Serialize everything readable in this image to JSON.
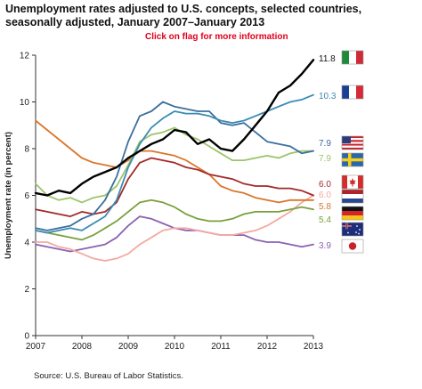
{
  "header": {
    "title_line1": "Unemployment rates adjusted to U.S. concepts, selected countries,",
    "title_line2": "seasonally adjusted, January 2007–January 2013",
    "click_note": "Click on flag for more information"
  },
  "source": "Source: U.S. Bureau of Labor Statistics.",
  "colors": {
    "italy": "#000000",
    "france": "#3a8bb3",
    "us": "#3b6f9c",
    "sweden": "#9cc46a",
    "canada": "#a32a2a",
    "netherlands": "#d9762b",
    "uk": "#7aa03c",
    "germany": "#f4a9a0",
    "australia": "#8a61b2",
    "japan": "#8a61b2"
  },
  "flags": [
    {
      "country": "Italy",
      "icon": "italy-flag-icon"
    },
    {
      "country": "France",
      "icon": "france-flag-icon"
    },
    {
      "country": "United States",
      "icon": "us-flag-icon"
    },
    {
      "country": "Sweden",
      "icon": "sweden-flag-icon"
    },
    {
      "country": "Canada",
      "icon": "canada-flag-icon"
    },
    {
      "country": "Netherlands",
      "icon": "netherlands-flag-icon"
    },
    {
      "country": "Germany",
      "icon": "germany-flag-icon"
    },
    {
      "country": "Australia",
      "icon": "australia-flag-icon"
    },
    {
      "country": "Japan",
      "icon": "japan-flag-icon"
    }
  ],
  "chart_data": {
    "type": "line",
    "title": "Unemployment rates adjusted to U.S. concepts, selected countries, seasonally adjusted, January 2007–January 2013",
    "xlabel": "",
    "ylabel": "Unemployment rate (in percent)",
    "xlim": [
      2007,
      2013
    ],
    "ylim": [
      0,
      12
    ],
    "xticks": [
      "2007",
      "2008",
      "2009",
      "2010",
      "2011",
      "2012",
      "2013"
    ],
    "yticks": [
      "0",
      "2",
      "4",
      "6",
      "8",
      "10",
      "12"
    ],
    "grid": false,
    "end_labels": [
      {
        "text": "11.8",
        "color": "#000000"
      },
      {
        "text": "10.3",
        "color": "#3a8bb3"
      },
      {
        "text": "7.9",
        "color": "#3b6f9c"
      },
      {
        "text": "7.9",
        "color": "#9cc46a"
      },
      {
        "text": "6.0",
        "color": "#a32a2a"
      },
      {
        "text": "6.0",
        "color": "#f4a9a0"
      },
      {
        "text": "5.8",
        "color": "#d9762b"
      },
      {
        "text": "5.4",
        "color": "#7aa03c"
      },
      {
        "text": "3.9",
        "color": "#8a61b2"
      }
    ],
    "series": [
      {
        "name": "Italy",
        "color": "#000000",
        "width": 2.4,
        "x": [
          2007,
          2007.25,
          2007.5,
          2007.75,
          2008,
          2008.25,
          2008.5,
          2008.75,
          2009,
          2009.25,
          2009.5,
          2009.75,
          2010,
          2010.25,
          2010.5,
          2010.75,
          2011,
          2011.25,
          2011.5,
          2011.75,
          2012,
          2012.25,
          2012.5,
          2012.75,
          2013
        ],
        "y": [
          6.1,
          6.0,
          6.2,
          6.1,
          6.5,
          6.8,
          7.0,
          7.2,
          7.6,
          7.9,
          8.2,
          8.4,
          8.8,
          8.7,
          8.2,
          8.4,
          8.0,
          7.9,
          8.4,
          9.0,
          9.6,
          10.4,
          10.7,
          11.2,
          11.8
        ]
      },
      {
        "name": "France",
        "color": "#3a8bb3",
        "width": 1.8,
        "x": [
          2007,
          2007.25,
          2007.5,
          2007.75,
          2008,
          2008.25,
          2008.5,
          2008.75,
          2009,
          2009.25,
          2009.5,
          2009.75,
          2010,
          2010.25,
          2010.5,
          2010.75,
          2011,
          2011.25,
          2011.5,
          2011.75,
          2012,
          2012.25,
          2012.5,
          2012.75,
          2013
        ],
        "y": [
          4.5,
          4.4,
          4.5,
          4.6,
          4.5,
          4.8,
          5.1,
          5.8,
          7.2,
          8.2,
          8.9,
          9.3,
          9.6,
          9.5,
          9.5,
          9.4,
          9.2,
          9.1,
          9.2,
          9.4,
          9.6,
          9.8,
          10.0,
          10.1,
          10.3
        ]
      },
      {
        "name": "United States",
        "color": "#3b6f9c",
        "width": 1.8,
        "x": [
          2007,
          2007.25,
          2007.5,
          2007.75,
          2008,
          2008.25,
          2008.5,
          2008.75,
          2009,
          2009.25,
          2009.5,
          2009.75,
          2010,
          2010.25,
          2010.5,
          2010.75,
          2011,
          2011.25,
          2011.5,
          2011.75,
          2012,
          2012.25,
          2012.5,
          2012.75,
          2013
        ],
        "y": [
          4.6,
          4.5,
          4.6,
          4.7,
          5.0,
          5.2,
          5.8,
          6.8,
          8.3,
          9.4,
          9.6,
          10.0,
          9.8,
          9.7,
          9.6,
          9.6,
          9.1,
          9.0,
          9.1,
          8.7,
          8.3,
          8.2,
          8.1,
          7.8,
          7.9
        ]
      },
      {
        "name": "Sweden",
        "color": "#9cc46a",
        "width": 1.8,
        "x": [
          2007,
          2007.25,
          2007.5,
          2007.75,
          2008,
          2008.25,
          2008.5,
          2008.75,
          2009,
          2009.25,
          2009.5,
          2009.75,
          2010,
          2010.25,
          2010.5,
          2010.75,
          2011,
          2011.25,
          2011.5,
          2011.75,
          2012,
          2012.25,
          2012.5,
          2012.75,
          2013
        ],
        "y": [
          6.5,
          6.0,
          5.8,
          5.9,
          5.7,
          5.9,
          6.0,
          6.4,
          7.3,
          8.3,
          8.6,
          8.7,
          8.9,
          8.6,
          8.4,
          8.1,
          7.8,
          7.5,
          7.5,
          7.6,
          7.7,
          7.6,
          7.8,
          7.9,
          7.9
        ]
      },
      {
        "name": "Canada",
        "color": "#a32a2a",
        "width": 1.8,
        "x": [
          2007,
          2007.25,
          2007.5,
          2007.75,
          2008,
          2008.25,
          2008.5,
          2008.75,
          2009,
          2009.25,
          2009.5,
          2009.75,
          2010,
          2010.25,
          2010.5,
          2010.75,
          2011,
          2011.25,
          2011.5,
          2011.75,
          2012,
          2012.25,
          2012.5,
          2012.75,
          2013
        ],
        "y": [
          5.4,
          5.3,
          5.2,
          5.1,
          5.3,
          5.2,
          5.3,
          5.7,
          6.7,
          7.4,
          7.6,
          7.5,
          7.4,
          7.2,
          7.1,
          6.9,
          6.8,
          6.7,
          6.5,
          6.4,
          6.4,
          6.3,
          6.3,
          6.2,
          6.0
        ]
      },
      {
        "name": "Netherlands",
        "color": "#d9762b",
        "width": 1.8,
        "x": [
          2007,
          2007.25,
          2007.5,
          2007.75,
          2008,
          2008.25,
          2008.5,
          2008.75,
          2009,
          2009.25,
          2009.5,
          2009.75,
          2010,
          2010.25,
          2010.5,
          2010.75,
          2011,
          2011.25,
          2011.5,
          2011.75,
          2012,
          2012.25,
          2012.5,
          2012.75,
          2013
        ],
        "y": [
          9.2,
          8.8,
          8.4,
          8.0,
          7.6,
          7.4,
          7.3,
          7.2,
          7.5,
          7.9,
          7.9,
          7.8,
          7.7,
          7.5,
          7.2,
          6.9,
          6.4,
          6.2,
          6.1,
          5.9,
          5.8,
          5.7,
          5.8,
          5.8,
          5.8
        ]
      },
      {
        "name": "United Kingdom",
        "color": "#7aa03c",
        "width": 1.8,
        "x": [
          2007,
          2007.25,
          2007.5,
          2007.75,
          2008,
          2008.25,
          2008.5,
          2008.75,
          2009,
          2009.25,
          2009.5,
          2009.75,
          2010,
          2010.25,
          2010.5,
          2010.75,
          2011,
          2011.25,
          2011.5,
          2011.75,
          2012,
          2012.25,
          2012.5,
          2012.75,
          2013
        ],
        "y": [
          4.5,
          4.4,
          4.3,
          4.2,
          4.1,
          4.3,
          4.6,
          4.9,
          5.3,
          5.7,
          5.8,
          5.7,
          5.5,
          5.2,
          5.0,
          4.9,
          4.9,
          5.0,
          5.2,
          5.3,
          5.3,
          5.3,
          5.4,
          5.5,
          5.4
        ]
      },
      {
        "name": "Germany",
        "color": "#f4a9a0",
        "width": 1.8,
        "x": [
          2007,
          2007.25,
          2007.5,
          2007.75,
          2008,
          2008.25,
          2008.5,
          2008.75,
          2009,
          2009.25,
          2009.5,
          2009.75,
          2010,
          2010.25,
          2010.5,
          2010.75,
          2011,
          2011.25,
          2011.5,
          2011.75,
          2012,
          2012.25,
          2012.5,
          2012.75,
          2013
        ],
        "y": [
          4.0,
          4.0,
          3.8,
          3.7,
          3.5,
          3.3,
          3.2,
          3.3,
          3.5,
          3.9,
          4.2,
          4.5,
          4.6,
          4.6,
          4.5,
          4.4,
          4.3,
          4.3,
          4.4,
          4.5,
          4.7,
          5.0,
          5.3,
          5.7,
          6.0
        ]
      },
      {
        "name": "Australia",
        "color": "#8a61b2",
        "width": 1.8,
        "x": [
          2007,
          2007.25,
          2007.5,
          2007.75,
          2008,
          2008.25,
          2008.5,
          2008.75,
          2009,
          2009.25,
          2009.5,
          2009.75,
          2010,
          2010.25,
          2010.5,
          2010.75,
          2011,
          2011.25,
          2011.5,
          2011.75,
          2012,
          2012.25,
          2012.5,
          2012.75,
          2013
        ],
        "y": [
          3.9,
          3.8,
          3.7,
          3.6,
          3.7,
          3.8,
          3.9,
          4.2,
          4.7,
          5.1,
          5.0,
          4.8,
          4.6,
          4.5,
          4.5,
          4.4,
          4.3,
          4.3,
          4.3,
          4.1,
          4.0,
          4.0,
          3.9,
          3.8,
          3.9
        ]
      }
    ]
  }
}
